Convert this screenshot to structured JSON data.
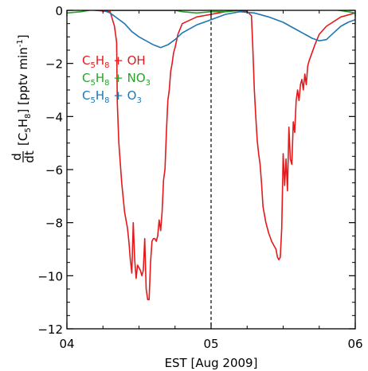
{
  "chart_data": {
    "type": "line",
    "xlabel": "EST [Aug 2009]",
    "ylabel": {
      "prefix": "dt",
      "num": "d",
      "species": "[C",
      "sub5": "5",
      "h": "H",
      "sub8": "8",
      "close": "]",
      "unit": "[pptv min",
      "unit_sup": "-1",
      "unit_close": "]"
    },
    "xlim": [
      4,
      6
    ],
    "ylim": [
      -12,
      0
    ],
    "xticks": [
      4,
      5,
      6
    ],
    "xtick_labels": [
      "04",
      "05",
      "06"
    ],
    "yticks": [
      0,
      -2,
      -4,
      -6,
      -8,
      -10,
      -12
    ],
    "ytick_labels": [
      "0",
      "−2",
      "−4",
      "−6",
      "−8",
      "−10",
      "−12"
    ],
    "vline_x": 5,
    "grid": false,
    "legend_position": "upper-left",
    "series": [
      {
        "name": "C5H8 + OH",
        "label_parts": [
          "C",
          "5",
          "H",
          "8",
          " + OH"
        ],
        "color": "#e31a1c",
        "x": [
          4.0,
          4.1,
          4.2,
          4.3,
          4.33,
          4.345,
          4.35,
          4.36,
          4.38,
          4.4,
          4.42,
          4.43,
          4.44,
          4.45,
          4.46,
          4.47,
          4.48,
          4.49,
          4.5,
          4.51,
          4.52,
          4.53,
          4.54,
          4.55,
          4.56,
          4.57,
          4.58,
          4.59,
          4.6,
          4.61,
          4.62,
          4.63,
          4.64,
          4.65,
          4.66,
          4.67,
          4.68,
          4.69,
          4.7,
          4.71,
          4.72,
          4.73,
          4.74,
          4.75,
          4.77,
          4.8,
          4.9,
          5.0,
          5.1,
          5.2,
          5.25,
          5.28,
          5.29,
          5.3,
          5.31,
          5.32,
          5.33,
          5.34,
          5.35,
          5.36,
          5.38,
          5.4,
          5.42,
          5.44,
          5.45,
          5.46,
          5.47,
          5.48,
          5.49,
          5.5,
          5.51,
          5.52,
          5.53,
          5.54,
          5.55,
          5.56,
          5.57,
          5.58,
          5.59,
          5.6,
          5.61,
          5.62,
          5.63,
          5.64,
          5.65,
          5.66,
          5.67,
          5.68,
          5.7,
          5.72,
          5.75,
          5.8,
          5.9,
          6.0
        ],
        "values": [
          0.0,
          0.05,
          0.0,
          -0.05,
          -0.6,
          -1.2,
          -3.5,
          -5.0,
          -6.5,
          -7.6,
          -8.2,
          -8.7,
          -9.4,
          -9.9,
          -8.0,
          -9.4,
          -10.1,
          -9.6,
          -9.7,
          -9.8,
          -10.0,
          -9.8,
          -8.6,
          -10.5,
          -10.9,
          -10.9,
          -9.5,
          -8.7,
          -8.6,
          -8.6,
          -8.7,
          -8.5,
          -7.9,
          -8.3,
          -7.6,
          -6.4,
          -6.0,
          -4.6,
          -3.4,
          -3.0,
          -2.3,
          -2.0,
          -1.6,
          -1.4,
          -0.9,
          -0.5,
          -0.25,
          -0.15,
          -0.05,
          0.0,
          -0.05,
          -0.2,
          -1.5,
          -3.0,
          -4.0,
          -4.9,
          -5.4,
          -5.8,
          -6.5,
          -7.4,
          -8.0,
          -8.4,
          -8.7,
          -8.9,
          -9.0,
          -9.3,
          -9.4,
          -9.3,
          -8.2,
          -5.4,
          -6.6,
          -5.6,
          -6.8,
          -4.4,
          -5.6,
          -5.8,
          -4.2,
          -4.6,
          -3.4,
          -3.0,
          -3.4,
          -2.8,
          -2.6,
          -3.0,
          -2.4,
          -2.8,
          -2.1,
          -1.9,
          -1.6,
          -1.3,
          -0.9,
          -0.6,
          -0.25,
          -0.1
        ]
      },
      {
        "name": "C5H8 + NO3",
        "label_parts": [
          "C",
          "5",
          "H",
          "8",
          " + NO",
          "3",
          ""
        ],
        "color": "#2ca02c",
        "x": [
          4.0,
          4.1,
          4.15,
          4.2,
          4.25,
          4.3,
          4.4,
          4.6,
          4.75,
          4.8,
          4.9,
          5.0,
          5.1,
          5.2,
          5.25,
          5.3,
          5.4,
          5.6,
          5.75,
          5.85,
          5.95,
          6.0
        ],
        "values": [
          -0.1,
          -0.05,
          0.0,
          0.1,
          0.08,
          0.0,
          0.0,
          0.0,
          0.0,
          -0.05,
          -0.1,
          -0.05,
          -0.05,
          0.0,
          0.05,
          0.15,
          0.18,
          0.12,
          0.08,
          0.03,
          -0.05,
          -0.1
        ]
      },
      {
        "name": "C5H8 + O3",
        "label_parts": [
          "C",
          "5",
          "H",
          "8",
          " + O",
          "3",
          ""
        ],
        "color": "#1f77b4",
        "x": [
          4.0,
          4.1,
          4.2,
          4.25,
          4.3,
          4.35,
          4.4,
          4.45,
          4.5,
          4.55,
          4.6,
          4.65,
          4.7,
          4.75,
          4.8,
          4.9,
          5.0,
          5.1,
          5.2,
          5.3,
          5.4,
          5.5,
          5.55,
          5.6,
          5.65,
          5.7,
          5.75,
          5.8,
          5.85,
          5.9,
          5.95,
          6.0
        ],
        "values": [
          0.0,
          0.05,
          0.1,
          0.0,
          -0.1,
          -0.3,
          -0.5,
          -0.8,
          -1.0,
          -1.15,
          -1.3,
          -1.4,
          -1.3,
          -1.1,
          -0.85,
          -0.55,
          -0.35,
          -0.15,
          -0.05,
          -0.1,
          -0.25,
          -0.45,
          -0.6,
          -0.75,
          -0.9,
          -1.05,
          -1.15,
          -1.1,
          -0.85,
          -0.6,
          -0.45,
          -0.35
        ]
      }
    ]
  }
}
